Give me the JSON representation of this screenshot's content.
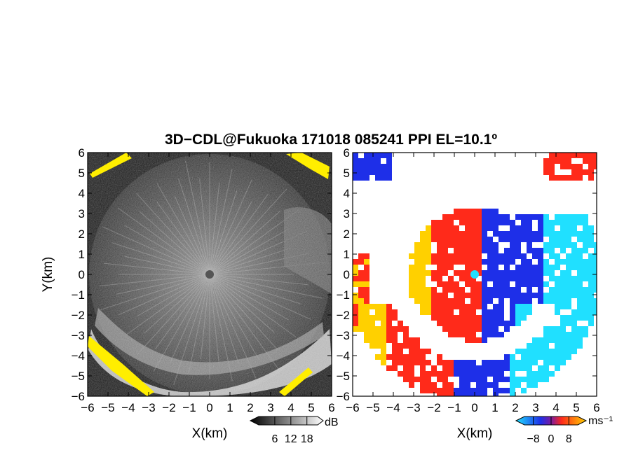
{
  "title": "3D−CDL@Fukuoka 171018 085241 PPI EL=10.1º",
  "chart_data": [
    {
      "type": "heatmap",
      "panel": "left",
      "quantity": "backscatter intensity",
      "xlabel": "X(km)",
      "ylabel": "Y(km)",
      "xlim": [
        -6,
        6
      ],
      "ylim": [
        -6,
        6
      ],
      "x_ticks": [
        -6,
        -5,
        -4,
        -3,
        -2,
        -1,
        0,
        1,
        2,
        3,
        4,
        5,
        6
      ],
      "y_ticks": [
        -6,
        -5,
        -4,
        -3,
        -2,
        -1,
        0,
        1,
        2,
        3,
        4,
        5,
        6
      ],
      "x_tick_labels": [
        "−6",
        "−5",
        "−4",
        "−3",
        "−2",
        "−1",
        "0",
        "1",
        "2",
        "3",
        "4",
        "5",
        "6"
      ],
      "y_tick_labels": [
        "6",
        "5",
        "4",
        "3",
        "2",
        "1",
        "0",
        "−1",
        "−2",
        "−3",
        "−4",
        "−5",
        "−6"
      ],
      "colorbar": {
        "unit": "dB",
        "ticks": [
          6,
          12,
          18
        ],
        "tick_labels": [
          "6",
          "12",
          "18"
        ],
        "colors": [
          "#000000",
          "#ffffff"
        ]
      }
    },
    {
      "type": "heatmap",
      "panel": "right",
      "quantity": "radial velocity",
      "xlabel": "X(km)",
      "xlim": [
        -6,
        6
      ],
      "ylim": [
        -6,
        6
      ],
      "x_ticks": [
        -6,
        -5,
        -4,
        -3,
        -2,
        -1,
        0,
        1,
        2,
        3,
        4,
        5,
        6
      ],
      "y_ticks": [
        -6,
        -5,
        -4,
        -3,
        -2,
        -1,
        0,
        1,
        2,
        3,
        4,
        5,
        6
      ],
      "x_tick_labels": [
        "−6",
        "−5",
        "−4",
        "−3",
        "−2",
        "−1",
        "0",
        "1",
        "2",
        "3",
        "4",
        "5",
        "6"
      ],
      "colorbar": {
        "unit": "ms⁻¹",
        "ticks": [
          -8,
          0,
          8
        ],
        "tick_labels": [
          "−8",
          "0",
          "8"
        ],
        "colors": [
          "#20e0ff",
          "#1e2fe8",
          "#ff2a1a",
          "#ffd000"
        ]
      }
    }
  ],
  "colors": {
    "intensity_low": "#111111",
    "intensity_high": "#f0f0f0",
    "clipped": "#ffee00",
    "velocity_negative": "#1e2fe8",
    "velocity_negative_strong": "#20e0ff",
    "velocity_positive": "#ff2a1a",
    "velocity_positive_strong": "#ffd000"
  }
}
